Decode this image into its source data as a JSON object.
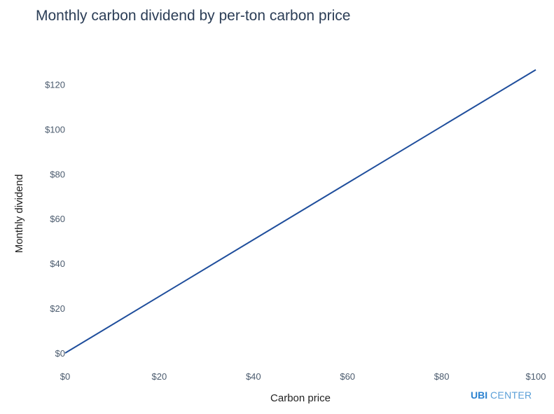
{
  "chart_data": {
    "type": "line",
    "title": "Monthly carbon dividend by per-ton carbon price",
    "xlabel": "Carbon price",
    "ylabel": "Monthly dividend",
    "xlim": [
      0,
      100
    ],
    "ylim": [
      0,
      127
    ],
    "x_ticks": [
      "$0",
      "$20",
      "$40",
      "$60",
      "$80",
      "$100"
    ],
    "x_tick_values": [
      0,
      20,
      40,
      60,
      80,
      100
    ],
    "y_ticks": [
      "$0",
      "$20",
      "$40",
      "$60",
      "$80",
      "$100",
      "$120"
    ],
    "y_tick_values": [
      0,
      20,
      40,
      60,
      80,
      100,
      120
    ],
    "grid": false,
    "series": [
      {
        "color": "#1f4e9c",
        "x": [
          0,
          100
        ],
        "y": [
          0,
          126.5
        ]
      }
    ]
  },
  "logo": {
    "ubi": "UBI",
    "center": "CENTER"
  }
}
